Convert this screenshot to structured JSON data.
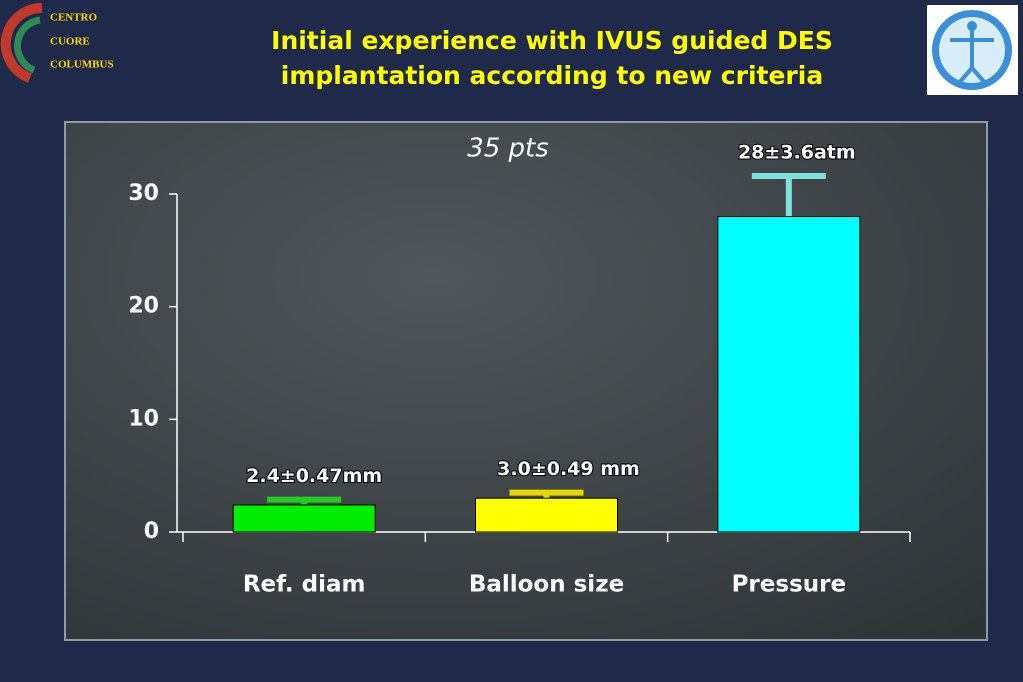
{
  "logo": {
    "lines": [
      "CENTRO",
      "CUORE",
      "COLUMBUS"
    ]
  },
  "chart_data": {
    "type": "bar",
    "title": [
      "Initial experience with IVUS guided DES",
      "implantation according to new criteria"
    ],
    "subtitle": "35 pts",
    "categories": [
      "Ref. diam",
      "Balloon size",
      "Pressure"
    ],
    "values": [
      2.4,
      3.0,
      28
    ],
    "errors": [
      0.47,
      0.49,
      3.6
    ],
    "value_labels": [
      "2.4±0.47mm",
      "3.0±0.49 mm",
      "28±3.6atm"
    ],
    "colors": [
      "#00ee00",
      "#ffff00",
      "#00ffff"
    ],
    "error_colors": [
      "#22cc22",
      "#e6d800",
      "#7fe0dc"
    ],
    "ylim": [
      0,
      30
    ],
    "yticks": [
      0,
      10,
      20,
      30
    ]
  }
}
